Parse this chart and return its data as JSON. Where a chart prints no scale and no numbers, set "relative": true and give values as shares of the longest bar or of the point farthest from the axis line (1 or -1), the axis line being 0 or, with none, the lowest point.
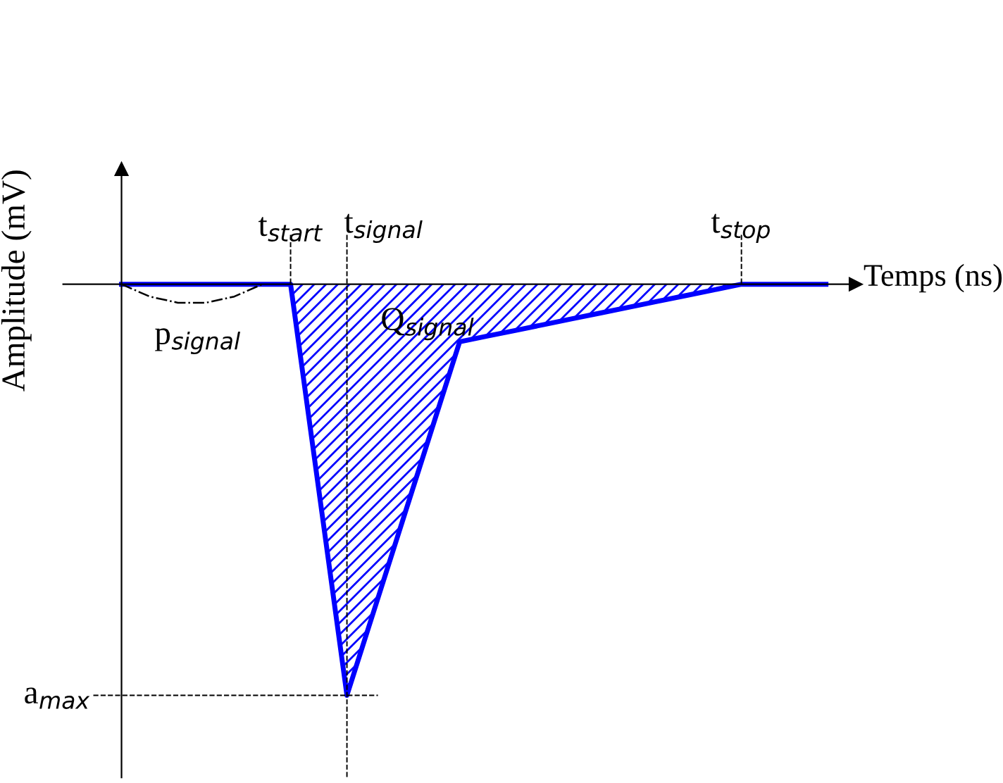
{
  "chart_data": {
    "type": "area",
    "relative": true,
    "xlabel": "Temps (ns)",
    "ylabel": "Amplitude (mV)",
    "categories": [
      null,
      null,
      null,
      null,
      null,
      null,
      null,
      null,
      null,
      null,
      null,
      null,
      null,
      null,
      null,
      null,
      null,
      null,
      null,
      null,
      null,
      null,
      null,
      null,
      null,
      null
    ],
    "series": [
      {
        "color": "#0000ff",
        "values": [
          0,
          0,
          0,
          0,
          0,
          0,
          0,
          -0.5,
          -1,
          -0.785,
          -0.57,
          -0.355,
          -0.14,
          -0.126,
          -0.112,
          -0.098,
          -0.084,
          -0.07,
          -0.056,
          -0.042,
          -0.028,
          -0.014,
          0,
          0,
          0,
          0
        ]
      },
      {
        "type": "line",
        "color": "#000000",
        "line_style": "dashed",
        "values": [
          0,
          -0.03,
          -0.045,
          -0.045,
          -0.03,
          0,
          null,
          null,
          null,
          null,
          null,
          null,
          null,
          null,
          null,
          null,
          null,
          null,
          null,
          null,
          null,
          null,
          null,
          null,
          null,
          null
        ]
      }
    ],
    "annotations": [
      "t$_{start}$",
      "t$_{signal}$",
      "t$_{stop}$",
      "a$_{max}$",
      "Q$_{signal}$",
      "p$_{signal}$"
    ],
    "grid": false,
    "legend": false
  }
}
